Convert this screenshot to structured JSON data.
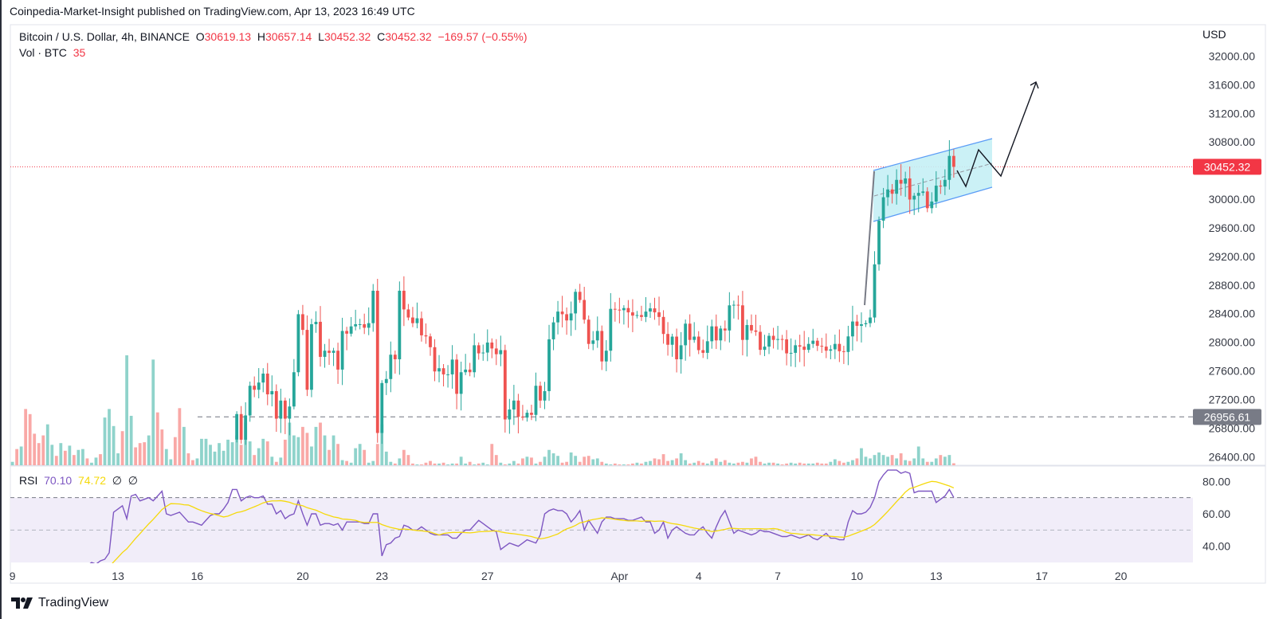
{
  "header": {
    "published": "Coinpedia-Market-Insight published on TradingView.com, Apr 13, 2023 16:49 UTC"
  },
  "legend": {
    "symbol": "Bitcoin / U.S. Dollar, 4h, BINANCE",
    "o_label": "O",
    "o": "30619.13",
    "h_label": "H",
    "h": "30657.14",
    "l_label": "L",
    "l": "30452.32",
    "c_label": "C",
    "c": "30452.32",
    "change": "−169.57 (−0.55%)",
    "vol_label": "Vol · BTC",
    "vol": "35"
  },
  "rsi_legend": {
    "label": "RSI",
    "value": "70.10",
    "ma": "74.72",
    "icon1": "∅",
    "icon2": "∅"
  },
  "footer": {
    "brand": "TradingView"
  },
  "colors": {
    "up": "#26a69a",
    "down": "#ef5350",
    "vol_up": "#8fd3cb",
    "vol_down": "#f9a8a6",
    "rsi": "#7e57c2",
    "rsi_ma": "#f5d90a",
    "rsi_band": "#f1edf9",
    "last_price": "#f23645",
    "level": "#787b86",
    "channel_fill": "#c5f0f5",
    "channel_line": "#5b9cf6"
  },
  "chart_data": {
    "type": "candlestick",
    "symbol": "BTCUSD",
    "interval": "4h",
    "exchange": "BINANCE",
    "y_unit": "USD",
    "y_ticks": [
      32000,
      31600,
      31200,
      30800,
      30000,
      29600,
      29200,
      28800,
      28400,
      28000,
      27600,
      27200,
      26800,
      26400
    ],
    "ylim": [
      26400,
      32000
    ],
    "x_ticks": [
      {
        "date": "2023-03-09",
        "label": "9"
      },
      {
        "date": "2023-03-13",
        "label": "13"
      },
      {
        "date": "2023-03-16",
        "label": "16"
      },
      {
        "date": "2023-03-20",
        "label": "20"
      },
      {
        "date": "2023-03-23",
        "label": "23"
      },
      {
        "date": "2023-03-27",
        "label": "27"
      },
      {
        "date": "2023-04-01",
        "label": "Apr"
      },
      {
        "date": "2023-04-04",
        "label": "4"
      },
      {
        "date": "2023-04-07",
        "label": "7"
      },
      {
        "date": "2023-04-10",
        "label": "10"
      },
      {
        "date": "2023-04-13",
        "label": "13"
      },
      {
        "date": "2023-04-17",
        "label": "17"
      },
      {
        "date": "2023-04-20",
        "label": "20"
      }
    ],
    "last_price": 30452.32,
    "level_line": 26956.61,
    "first_visible_open": 26640,
    "closes": [
      26996,
      26638,
      26977,
      27392,
      27336,
      27437,
      27562,
      27272,
      27317,
      26932,
      27185,
      26932,
      27102,
      27581,
      28392,
      28173,
      27336,
      28252,
      28286,
      27796,
      27882,
      27852,
      27882,
      27618,
      28158,
      28120,
      28222,
      28252,
      28252,
      28203,
      28267,
      28720,
      26732,
      27430,
      27486,
      27826,
      27762,
      28720,
      28459,
      28346,
      28267,
      28335,
      28097,
      28082,
      27931,
      27592,
      27637,
      27551,
      27551,
      27758,
      27279,
      27581,
      27618,
      27581,
      27958,
      27845,
      27856,
      27996,
      27913,
      27833,
      27890,
      26921,
      27060,
      27185,
      26959,
      26947,
      27015,
      26985,
      27392,
      27185,
      27317,
      28041,
      28278,
      28429,
      28392,
      28305,
      28403,
      28705,
      28591,
      28316,
      27977,
      28026,
      28158,
      27732,
      27882,
      28467,
      28456,
      28448,
      28478,
      28418,
      28373,
      28380,
      28354,
      28429,
      28474,
      28418,
      28354,
      28116,
      27965,
      28079,
      27762,
      27958,
      28260,
      28033,
      28079,
      27890,
      27852,
      28014,
      28222,
      28026,
      28192,
      28165,
      28516,
      28524,
      28516,
      28033,
      28241,
      28165,
      28146,
      27894,
      27939,
      28090,
      28033,
      28045,
      28041,
      27845,
      27852,
      27958,
      27939,
      27894,
      27977,
      28022,
      27950,
      27939,
      27882,
      27901,
      27977,
      27875,
      27864,
      28082,
      28290,
      28229,
      28252,
      28267,
      28346,
      29089,
      29700,
      30027,
      30136,
      30076,
      30270,
      30217,
      30290,
      29995,
      30048,
      30088,
      30108,
      29874,
      29967,
      30189,
      30177,
      30270,
      30605,
      30452.32
    ],
    "volume_btc": [
      60,
      285,
      330,
      990,
      900,
      555,
      390,
      525,
      720,
      360,
      165,
      390,
      255,
      345,
      180,
      270,
      285,
      120,
      45,
      135,
      195,
      840,
      990,
      690,
      210,
      600,
      1935,
      870,
      315,
      390,
      405,
      525,
      1860,
      930,
      630,
      285,
      105,
      495,
      1005,
      675,
      210,
      90,
      120,
      465,
      465,
      360,
      240,
      390,
      255,
      450,
      405,
      525,
      360,
      750,
      420,
      180,
      300,
      465,
      420,
      150,
      60,
      135,
      450,
      750,
      525,
      495,
      675,
      570,
      330,
      675,
      750,
      525,
      270,
      525,
      375,
      90,
      75,
      45,
      300,
      375,
      270,
      45,
      75,
      375,
      720,
      240,
      60,
      30,
      120,
      270,
      180,
      30,
      15,
      15,
      45,
      75,
      30,
      30,
      45,
      15,
      30,
      30,
      150,
      30,
      60,
      15,
      30,
      45,
      15,
      375,
      180,
      45,
      15,
      30,
      75,
      30,
      120,
      150,
      135,
      30,
      60,
      150,
      270,
      210,
      165,
      45,
      60,
      225,
      165,
      60,
      150,
      165,
      105,
      120,
      60,
      30,
      15,
      30,
      15,
      15,
      15,
      30,
      45,
      30,
      60,
      75,
      120,
      105,
      195,
      75,
      90,
      120,
      210,
      90,
      30,
      45,
      75,
      45,
      30,
      75,
      120,
      60,
      90,
      45,
      30,
      45,
      60,
      45,
      120,
      150,
      60,
      30,
      45,
      45,
      30,
      15,
      30,
      45,
      30,
      45,
      30,
      30,
      30,
      45,
      30,
      30,
      60,
      105,
      75,
      45,
      60,
      90,
      120,
      300,
      150,
      120,
      180,
      225,
      180,
      150,
      180,
      120,
      210,
      90,
      75,
      120,
      330,
      120,
      60,
      60,
      120,
      180,
      150,
      180,
      35
    ],
    "volume_direction_before_visible": "grgrrrrrggrgrgrggrggrggggrggrrrggrrggrrgrrggggggggg",
    "rsi": {
      "length": 14,
      "ma_length": 14,
      "levels": [
        70,
        50,
        30
      ],
      "y_ticks": [
        80,
        60,
        40
      ],
      "values": [
        22,
        20,
        18,
        20,
        22,
        19,
        21,
        20,
        23,
        21,
        22,
        24,
        25,
        26,
        27,
        27,
        26,
        28,
        30,
        29,
        31,
        32,
        36,
        61,
        63,
        65,
        57,
        71,
        72,
        68,
        69,
        70,
        68,
        71,
        74,
        60,
        59,
        60,
        61,
        58,
        55,
        55,
        54,
        53,
        56,
        59,
        60,
        60,
        63,
        67,
        75,
        75,
        68,
        70,
        71,
        70,
        70,
        71,
        66,
        66,
        60,
        62,
        57,
        59,
        60,
        68,
        60,
        53,
        60,
        60,
        53,
        54,
        54,
        53,
        54,
        50,
        55,
        55,
        55,
        55,
        54,
        54,
        60,
        60,
        34,
        41,
        42,
        45,
        46,
        53,
        52,
        50,
        50,
        52,
        50,
        48,
        47,
        47,
        47,
        47,
        45,
        45,
        48,
        50,
        50,
        53,
        56,
        54,
        52,
        50,
        49,
        38,
        40,
        42,
        41,
        40,
        42,
        44,
        43,
        42,
        47,
        60,
        62,
        63,
        62,
        62,
        60,
        55,
        58,
        62,
        50,
        56,
        52,
        48,
        55,
        58,
        58,
        57,
        57,
        57,
        56,
        56,
        57,
        58,
        55,
        55,
        48,
        50,
        55,
        45,
        50,
        52,
        50,
        48,
        47,
        47,
        50,
        52,
        48,
        45,
        52,
        58,
        62,
        55,
        48,
        50,
        49,
        48,
        47,
        48,
        50,
        49,
        49,
        48,
        47,
        46,
        46,
        47,
        46,
        45,
        46,
        47,
        45,
        44,
        46,
        48,
        45,
        45,
        44,
        44,
        55,
        62,
        60,
        60,
        61,
        64,
        70,
        80,
        84,
        87,
        87,
        87,
        85,
        86,
        85,
        73,
        74,
        74,
        74,
        74,
        67,
        69,
        71,
        75,
        70.1
      ]
    },
    "annotations": [
      "flag-pole",
      "parallel-channel",
      "zigzag-projection-arrow"
    ]
  }
}
